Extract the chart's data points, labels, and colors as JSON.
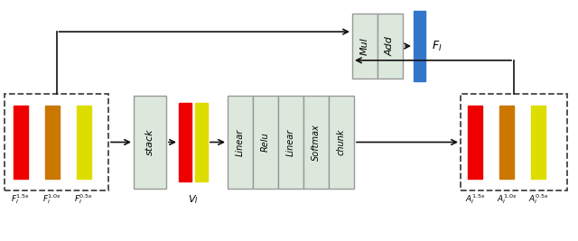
{
  "bg_color": "#ffffff",
  "box_face": "#dde8dd",
  "box_edge": "#999999",
  "dashed_box_edge": "#444444",
  "arrow_color": "#111111",
  "bar_red": "#ee0000",
  "bar_orange": "#cc7700",
  "bar_yellow": "#dddd00",
  "bar_blue": "#3377cc",
  "fig_w": 6.4,
  "fig_h": 2.67,
  "lin_labels": [
    "Linear",
    "Relu",
    "Linear",
    "Softmax",
    "chunk"
  ]
}
